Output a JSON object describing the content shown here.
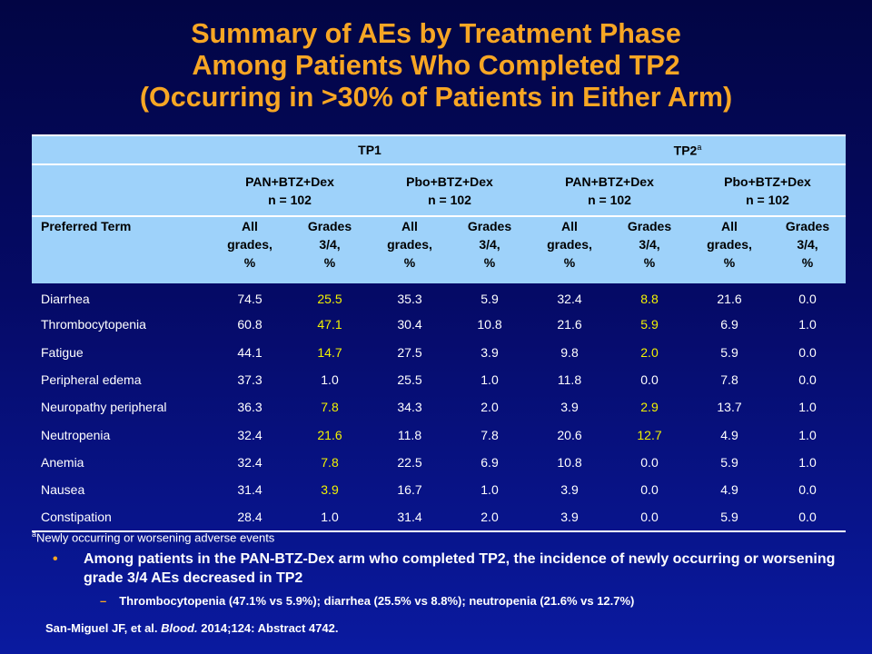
{
  "title": {
    "line1": "Summary of AEs by Treatment Phase",
    "line2": "Among Patients Who Completed TP2",
    "line3": "(Occurring in >30% of Patients in Either Arm)"
  },
  "table": {
    "phases": [
      "TP1",
      "TP2"
    ],
    "phase2_sup": "a",
    "arms": [
      {
        "name": "PAN+BTZ+Dex",
        "n": "n = 102"
      },
      {
        "name": "Pbo+BTZ+Dex",
        "n": "n = 102"
      },
      {
        "name": "PAN+BTZ+Dex",
        "n": "n = 102"
      },
      {
        "name": "Pbo+BTZ+Dex",
        "n": "n = 102"
      }
    ],
    "preferred_term_header": "Preferred  Term",
    "all_grades": [
      "All",
      "grades,",
      "%"
    ],
    "grades34": [
      "Grades",
      "3/4,",
      "%"
    ],
    "rows": [
      {
        "term": "Diarrhea",
        "values": [
          "74.5",
          "25.5",
          "35.3",
          "5.9",
          "32.4",
          "8.8",
          "21.6",
          "0.0"
        ],
        "highlight": [
          1,
          5
        ]
      },
      {
        "term": "Thrombocytopenia",
        "values": [
          "60.8",
          "47.1",
          "30.4",
          "10.8",
          "21.6",
          "5.9",
          "6.9",
          "1.0"
        ],
        "highlight": [
          1,
          5
        ]
      },
      {
        "term": "Fatigue",
        "values": [
          "44.1",
          "14.7",
          "27.5",
          "3.9",
          "9.8",
          "2.0",
          "5.9",
          "0.0"
        ],
        "highlight": [
          1,
          5
        ]
      },
      {
        "term": "Peripheral  edema",
        "values": [
          "37.3",
          "1.0",
          "25.5",
          "1.0",
          "11.8",
          "0.0",
          "7.8",
          "0.0"
        ],
        "highlight": []
      },
      {
        "term": "Neuropathy  peripheral",
        "values": [
          "36.3",
          "7.8",
          "34.3",
          "2.0",
          "3.9",
          "2.9",
          "13.7",
          "1.0"
        ],
        "highlight": [
          1,
          5
        ]
      },
      {
        "term": "Neutropenia",
        "values": [
          "32.4",
          "21.6",
          "11.8",
          "7.8",
          "20.6",
          "12.7",
          "4.9",
          "1.0"
        ],
        "highlight": [
          1,
          5
        ]
      },
      {
        "term": "Anemia",
        "values": [
          "32.4",
          "7.8",
          "22.5",
          "6.9",
          "10.8",
          "0.0",
          "5.9",
          "1.0"
        ],
        "highlight": [
          1
        ]
      },
      {
        "term": "Nausea",
        "values": [
          "31.4",
          "3.9",
          "16.7",
          "1.0",
          "3.9",
          "0.0",
          "4.9",
          "0.0"
        ],
        "highlight": [
          1
        ]
      },
      {
        "term": "Constipation",
        "values": [
          "28.4",
          "1.0",
          "31.4",
          "2.0",
          "3.9",
          "0.0",
          "5.9",
          "0.0"
        ],
        "highlight": []
      }
    ],
    "highlight_color": "#f2f200"
  },
  "footnote": {
    "marker": "a",
    "text": "Newly occurring or worsening adverse events"
  },
  "bullet": {
    "marker": "•",
    "text": "Among patients in the PAN-BTZ-Dex arm who completed TP2, the incidence of newly occurring or worsening grade 3/4 AEs decreased in TP2"
  },
  "subbullet": {
    "marker": "–",
    "text": "Thrombocytopenia (47.1% vs 5.9%); diarrhea (25.5% vs 8.8%); neutropenia (21.6% vs 12.7%)"
  },
  "citation": {
    "authors": "San-Miguel JF, et al.",
    "journal": "Blood.",
    "rest": "2014;124: Abstract 4742."
  },
  "colors": {
    "title": "#f7a624",
    "header_bg": "#9ed2fa",
    "background": "#050a66"
  }
}
